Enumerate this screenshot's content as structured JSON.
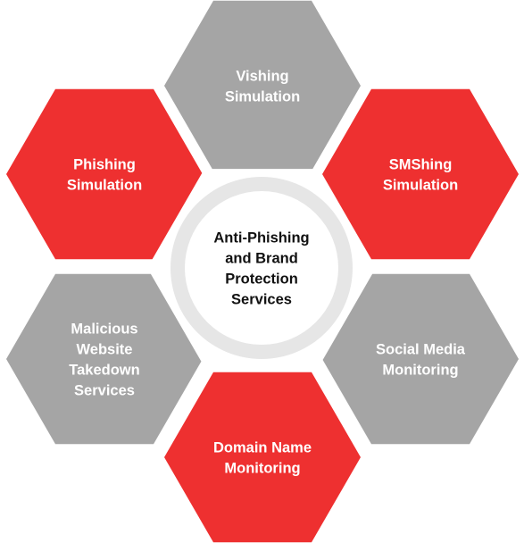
{
  "colors": {
    "red": "#ee3030",
    "gray": "#a5a5a5",
    "center_fill": "#ffffff",
    "center_ring": "#e6e6e6",
    "label_light": "#ffffff",
    "label_dark": "#111111"
  },
  "center": {
    "lines": [
      "Anti-Phishing",
      "and Brand",
      "Protection",
      "Services"
    ]
  },
  "segments": [
    {
      "id": "vishing",
      "color": "gray",
      "lines": [
        "Vishing",
        "Simulation"
      ]
    },
    {
      "id": "smshing",
      "color": "red",
      "lines": [
        "SMShing",
        "Simulation"
      ]
    },
    {
      "id": "social-media",
      "color": "gray",
      "lines": [
        "Social Media",
        "Monitoring"
      ]
    },
    {
      "id": "domain-name",
      "color": "red",
      "lines": [
        "Domain Name",
        "Monitoring"
      ]
    },
    {
      "id": "malicious-website",
      "color": "gray",
      "lines": [
        "Malicious",
        "Website",
        "Takedown",
        "Services"
      ]
    },
    {
      "id": "phishing",
      "color": "red",
      "lines": [
        "Phishing",
        "Simulation"
      ]
    }
  ]
}
